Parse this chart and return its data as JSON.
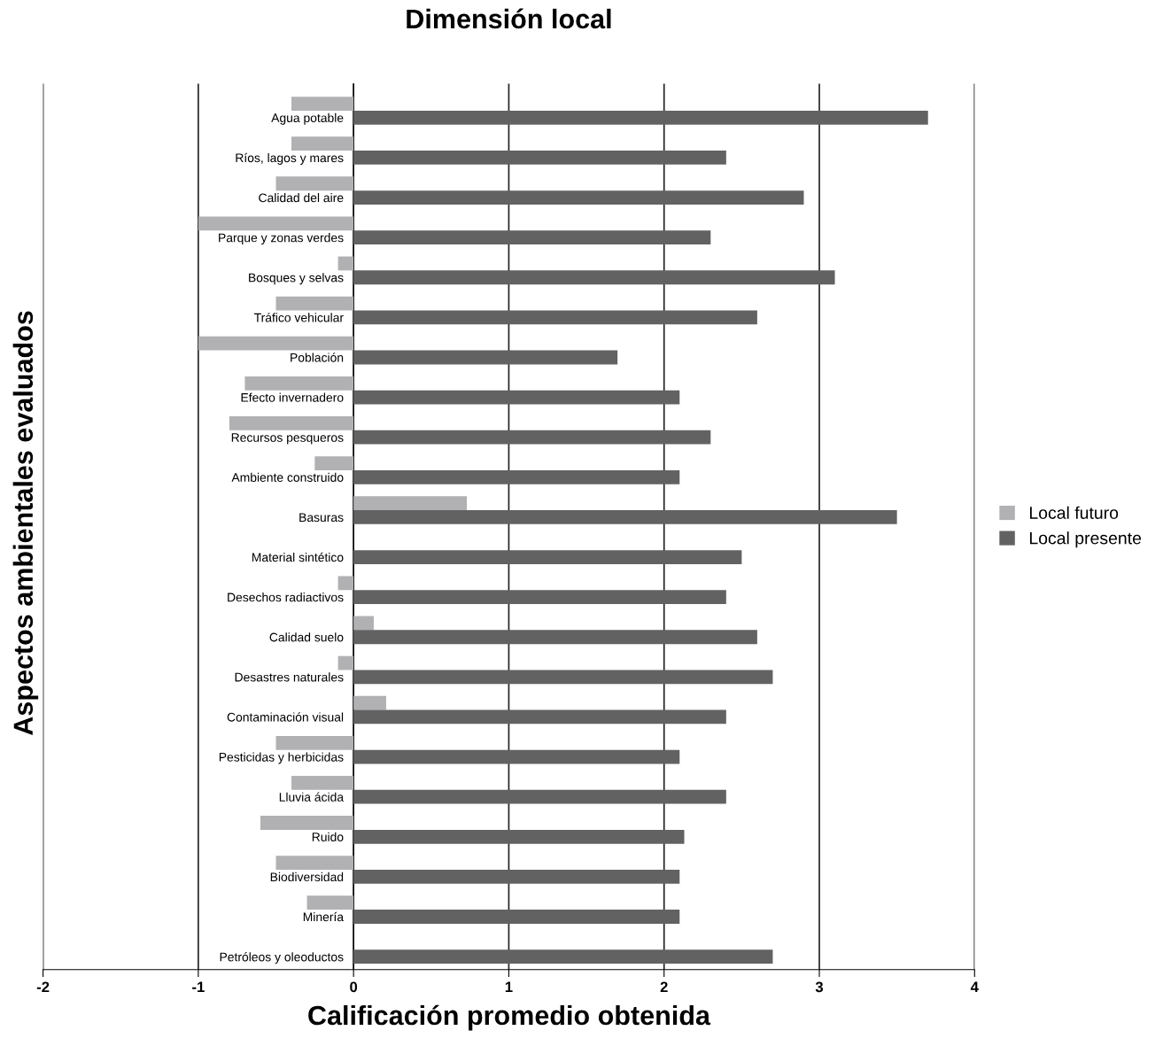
{
  "chart_data": {
    "type": "bar",
    "orientation": "horizontal",
    "title": "Dimensión local",
    "xlabel": "Calificación promedio obtenida",
    "ylabel": "Aspectos ambientales evaluados",
    "categories": [
      "Agua potable",
      "Ríos, lagos y mares",
      "Calidad del aire",
      "Parque y zonas verdes",
      "Bosques y selvas",
      "Tráfico vehicular",
      "Población",
      "Efecto invernadero",
      "Recursos pesqueros",
      "Ambiente construido",
      "Basuras",
      "Material sintético",
      "Desechos radiactivos",
      "Calidad suelo",
      "Desastres naturales",
      "Contaminación visual",
      "Pesticidas y herbicidas",
      "Lluvia ácida",
      "Ruido",
      "Biodiversidad",
      "Minería",
      "Petróleos y oleoductos"
    ],
    "series": [
      {
        "name": "Local futuro",
        "color": "#b1b1b3",
        "values": [
          -0.4,
          -0.4,
          -0.5,
          -1.0,
          -0.1,
          -0.5,
          -1.0,
          -0.7,
          -0.8,
          -0.25,
          0.73,
          null,
          -0.1,
          0.13,
          -0.1,
          0.21,
          -0.5,
          -0.4,
          -0.6,
          -0.5,
          -0.3,
          null
        ]
      },
      {
        "name": "Local presente",
        "color": "#626262",
        "values": [
          3.7,
          2.4,
          2.9,
          2.3,
          3.1,
          2.6,
          1.7,
          2.1,
          2.3,
          2.1,
          3.5,
          2.5,
          2.4,
          2.6,
          2.7,
          2.4,
          2.1,
          2.4,
          2.13,
          2.1,
          2.1,
          2.7
        ]
      }
    ],
    "xlim": [
      -2,
      4
    ],
    "xticks": [
      -2,
      -1,
      0,
      1,
      2,
      3,
      4
    ],
    "grid": "x",
    "legend": "right"
  }
}
